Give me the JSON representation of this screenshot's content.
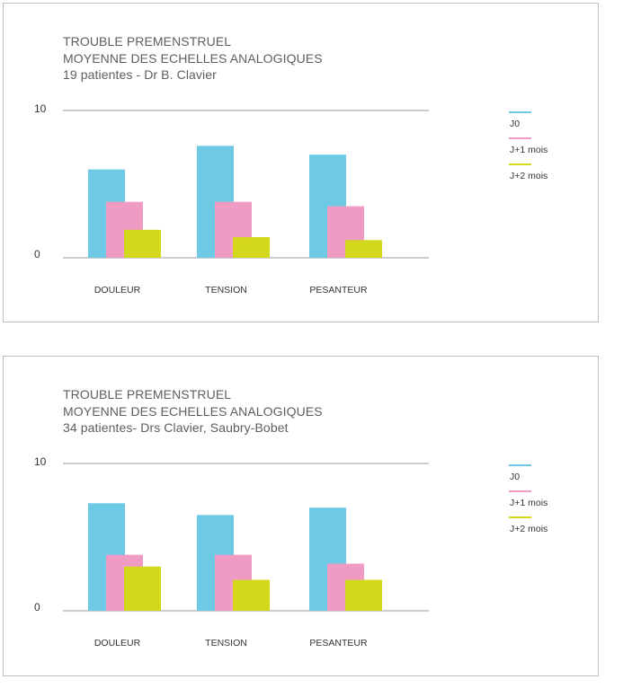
{
  "colors": {
    "j0": "#6ec9e5",
    "j1": "#f09bc3",
    "j2": "#d3d81c",
    "axis": "#9a9a9a"
  },
  "panels": [
    {
      "title_line1": "TROUBLE PREMENSTRUEL",
      "title_line2": "MOYENNE DES ECHELLES ANALOGIQUES",
      "subtitle": "19 patientes - Dr B. Clavier"
    },
    {
      "title_line1": "TROUBLE PREMENSTRUEL",
      "title_line2": "MOYENNE DES ECHELLES ANALOGIQUES",
      "subtitle": "34 patientes- Drs Clavier, Saubry-Bobet"
    }
  ],
  "chart_data": [
    {
      "type": "bar",
      "title": "TROUBLE PREMENSTRUEL MOYENNE DES ECHELLES ANALOGIQUES",
      "subtitle": "19 patientes - Dr B. Clavier",
      "categories": [
        "DOULEUR",
        "TENSION",
        "PESANTEUR"
      ],
      "series": [
        {
          "name": "J0",
          "values": [
            6.0,
            7.6,
            7.0
          ]
        },
        {
          "name": "J+1 mois",
          "values": [
            3.8,
            3.8,
            3.5
          ]
        },
        {
          "name": "J+2 mois",
          "values": [
            1.9,
            1.4,
            1.2
          ]
        }
      ],
      "yticks": [
        "0",
        "10"
      ],
      "ylim": [
        0,
        10
      ],
      "legend": "right",
      "grid": true
    },
    {
      "type": "bar",
      "title": "TROUBLE PREMENSTRUEL MOYENNE DES ECHELLES ANALOGIQUES",
      "subtitle": "34 patientes- Drs Clavier, Saubry-Bobet",
      "categories": [
        "DOULEUR",
        "TENSION",
        "PESANTEUR"
      ],
      "series": [
        {
          "name": "J0",
          "values": [
            7.3,
            6.5,
            7.0
          ]
        },
        {
          "name": "J+1 mois",
          "values": [
            3.8,
            3.8,
            3.2
          ]
        },
        {
          "name": "J+2 mois",
          "values": [
            3.0,
            2.1,
            2.1
          ]
        }
      ],
      "yticks": [
        "0",
        "10"
      ],
      "ylim": [
        0,
        10
      ],
      "legend": "right",
      "grid": true
    }
  ]
}
